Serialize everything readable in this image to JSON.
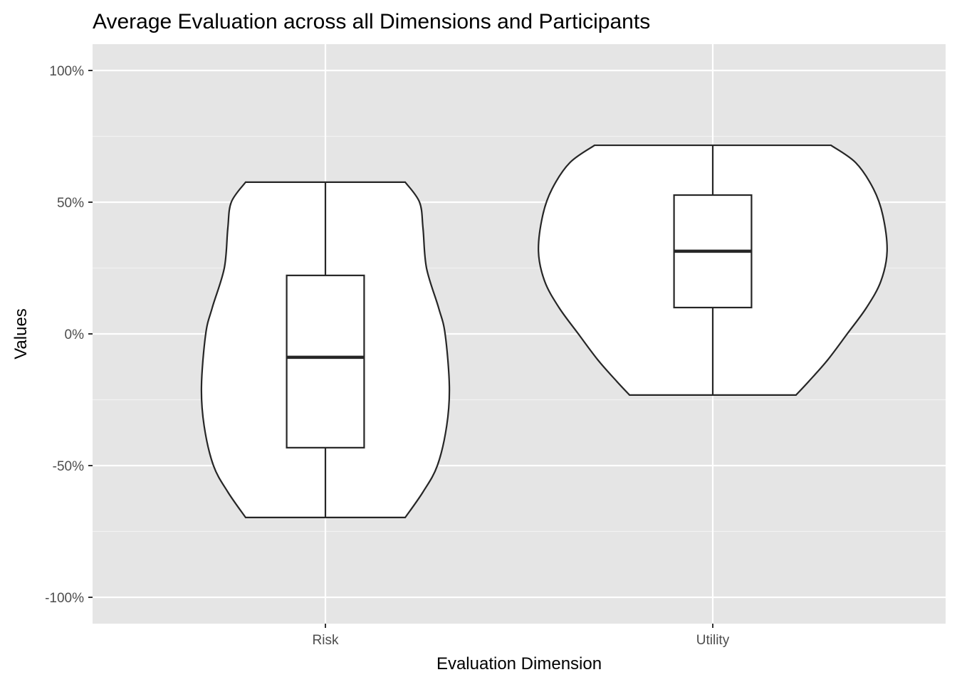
{
  "chart_data": {
    "type": "violin",
    "title": "Average Evaluation across all Dimensions and Participants",
    "xlabel": "Evaluation Dimension",
    "ylabel": "Values",
    "ylim": [
      -110,
      110
    ],
    "y_ticks": [
      100,
      50,
      0,
      -50,
      -100
    ],
    "y_tick_labels": [
      "100%",
      "50%",
      "0%",
      "-50%",
      "-100%"
    ],
    "y_minor_ticks": [
      75,
      25,
      -25,
      -75
    ],
    "categories": [
      "Risk",
      "Utility"
    ],
    "grid": true,
    "legend": "none",
    "series": [
      {
        "name": "Risk",
        "box": {
          "min": -69.7,
          "q1": -43.2,
          "median": -8.9,
          "q3": 22.2,
          "max": 57.6
        },
        "violin_profile": [
          [
            57.6,
            0.206
          ],
          [
            50,
            0.243
          ],
          [
            40,
            0.252
          ],
          [
            25,
            0.261
          ],
          [
            10,
            0.292
          ],
          [
            0,
            0.309
          ],
          [
            -20,
            0.32
          ],
          [
            -35,
            0.313
          ],
          [
            -50,
            0.289
          ],
          [
            -60,
            0.252
          ],
          [
            -69.7,
            0.206
          ]
        ]
      },
      {
        "name": "Utility",
        "box": {
          "min": -23.2,
          "q1": 10.0,
          "median": 31.4,
          "q3": 52.7,
          "max": 71.6
        },
        "violin_profile": [
          [
            71.6,
            0.305
          ],
          [
            65,
            0.369
          ],
          [
            55,
            0.415
          ],
          [
            45,
            0.439
          ],
          [
            31.4,
            0.45
          ],
          [
            20,
            0.434
          ],
          [
            10,
            0.397
          ],
          [
            0,
            0.347
          ],
          [
            -10,
            0.296
          ],
          [
            -18,
            0.248
          ],
          [
            -23.2,
            0.215
          ]
        ]
      }
    ]
  }
}
